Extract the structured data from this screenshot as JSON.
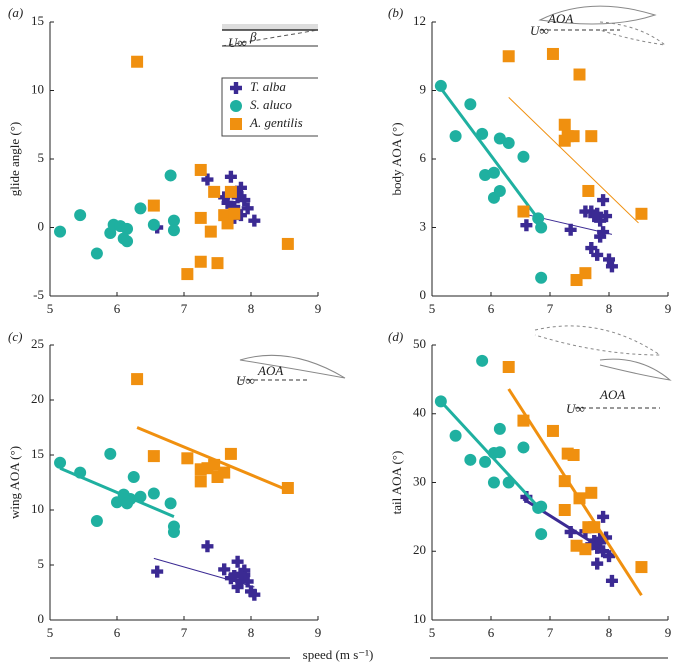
{
  "chart_data": [
    {
      "type": "scatter",
      "panel_label": "(a)",
      "y_label": "glide angle (°)",
      "xlim": [
        5,
        9
      ],
      "xticks": [
        5,
        6,
        7,
        8,
        9
      ],
      "ylim": [
        -5,
        15
      ],
      "yticks": [
        -5,
        0,
        5,
        10,
        15
      ],
      "legend": "upper right",
      "annotations": [
        "U∞",
        "β"
      ],
      "series": [
        {
          "name": "T. alba",
          "color": "#3b2a93",
          "marker": "plus",
          "x": [
            6.6,
            7.35,
            7.7,
            7.6,
            7.65,
            7.7,
            7.75,
            7.8,
            7.85,
            7.9,
            7.95,
            7.75,
            7.85,
            8.05,
            7.8
          ],
          "y": [
            0,
            3.5,
            3.7,
            2.2,
            1.8,
            1.0,
            1.5,
            2.5,
            2.9,
            2.0,
            1.4,
            0.7,
            0.9,
            0.5,
            2.2
          ]
        },
        {
          "name": "S. aluco",
          "color": "#1fb0a0",
          "marker": "circle",
          "x": [
            5.15,
            5.45,
            5.7,
            5.9,
            5.95,
            6.05,
            6.15,
            6.1,
            6.15,
            6.35,
            6.55,
            6.8,
            6.85,
            6.85
          ],
          "y": [
            -0.3,
            0.9,
            -1.9,
            -0.4,
            0.2,
            0.1,
            -0.1,
            -0.8,
            -1.0,
            1.4,
            0.2,
            3.8,
            0.5,
            -0.2
          ]
        },
        {
          "name": "A. gentilis",
          "color": "#f0900f",
          "marker": "square",
          "x": [
            6.3,
            6.55,
            7.05,
            7.25,
            7.25,
            7.25,
            7.4,
            7.45,
            7.5,
            7.6,
            7.65,
            7.7,
            7.75,
            8.55
          ],
          "y": [
            12.1,
            1.6,
            -3.4,
            4.2,
            0.7,
            -2.5,
            -0.3,
            2.6,
            -2.6,
            0.9,
            0.3,
            2.6,
            1.0,
            -1.2
          ]
        }
      ]
    },
    {
      "type": "scatter",
      "panel_label": "(b)",
      "y_label": "body AOA (°)",
      "xlim": [
        5,
        9
      ],
      "xticks": [
        5,
        6,
        7,
        8,
        9
      ],
      "ylim": [
        0,
        12
      ],
      "yticks": [
        0,
        3,
        6,
        9,
        12
      ],
      "annotations": [
        "U∞",
        "AOA"
      ],
      "series": [
        {
          "color": "#3b2a93",
          "marker": "plus",
          "x": [
            6.6,
            7.35,
            7.6,
            7.7,
            7.75,
            7.7,
            7.8,
            7.85,
            7.9,
            7.95,
            7.85,
            7.9,
            8.0,
            8.05,
            7.8
          ],
          "y": [
            3.1,
            2.9,
            3.7,
            3.7,
            3.5,
            2.1,
            1.8,
            3.3,
            4.2,
            3.5,
            2.6,
            2.8,
            1.6,
            1.3,
            3.6
          ],
          "fit": {
            "x": [
              6.55,
              8.05
            ],
            "y": [
              3.6,
              2.7
            ],
            "width": 1
          }
        },
        {
          "color": "#1fb0a0",
          "marker": "circle",
          "x": [
            5.15,
            5.4,
            5.65,
            5.85,
            5.9,
            6.05,
            6.05,
            6.15,
            6.15,
            6.3,
            6.55,
            6.8,
            6.85,
            6.85
          ],
          "y": [
            9.2,
            7.0,
            8.4,
            7.1,
            5.3,
            5.4,
            4.3,
            4.6,
            6.9,
            6.7,
            6.1,
            3.4,
            3.0,
            0.8
          ],
          "fit": {
            "x": [
              5.15,
              6.85
            ],
            "y": [
              9.1,
              3.2
            ],
            "width": 3
          }
        },
        {
          "color": "#f0900f",
          "marker": "square",
          "x": [
            6.3,
            6.55,
            7.05,
            7.25,
            7.25,
            7.3,
            7.4,
            7.45,
            7.5,
            7.6,
            7.65,
            7.7,
            8.55
          ],
          "y": [
            10.5,
            3.7,
            10.6,
            7.5,
            6.8,
            7.0,
            7.0,
            0.7,
            9.7,
            1.0,
            4.6,
            7.0,
            3.6
          ],
          "fit": {
            "x": [
              6.3,
              8.5
            ],
            "y": [
              8.7,
              3.2
            ],
            "width": 1
          }
        }
      ]
    },
    {
      "type": "scatter",
      "panel_label": "(c)",
      "y_label": "wing AOA (°)",
      "xlim": [
        5,
        9
      ],
      "xticks": [
        5,
        6,
        7,
        8,
        9
      ],
      "ylim": [
        0,
        25
      ],
      "yticks": [
        0,
        5,
        10,
        15,
        20,
        25
      ],
      "annotations": [
        "U∞",
        "AOA"
      ],
      "series": [
        {
          "color": "#3b2a93",
          "marker": "plus",
          "x": [
            6.6,
            7.35,
            7.6,
            7.7,
            7.75,
            7.8,
            7.8,
            7.85,
            7.9,
            7.95,
            7.9,
            8.0,
            8.05,
            7.85
          ],
          "y": [
            4.4,
            6.7,
            4.6,
            3.8,
            4.0,
            5.3,
            3.0,
            3.6,
            4.5,
            3.5,
            4.1,
            2.6,
            2.3,
            4.2
          ],
          "fit": {
            "x": [
              6.55,
              8.05
            ],
            "y": [
              5.6,
              3.0
            ],
            "width": 1
          }
        },
        {
          "color": "#1fb0a0",
          "marker": "circle",
          "x": [
            5.15,
            5.45,
            5.7,
            5.9,
            6.0,
            6.1,
            6.15,
            6.2,
            6.25,
            6.35,
            6.55,
            6.8,
            6.85,
            6.85
          ],
          "y": [
            14.3,
            13.4,
            9.0,
            15.1,
            10.7,
            11.4,
            10.6,
            11.0,
            13.0,
            11.2,
            11.5,
            10.6,
            8.5,
            8.0
          ],
          "fit": {
            "x": [
              5.15,
              6.85
            ],
            "y": [
              13.8,
              9.4
            ],
            "width": 3
          }
        },
        {
          "color": "#f0900f",
          "marker": "square",
          "x": [
            6.3,
            6.55,
            7.05,
            7.25,
            7.25,
            7.35,
            7.45,
            7.5,
            7.6,
            7.7,
            8.55
          ],
          "y": [
            21.9,
            14.9,
            14.7,
            13.7,
            12.6,
            13.8,
            14.1,
            13.0,
            13.4,
            15.1,
            12.0
          ],
          "fit": {
            "x": [
              6.3,
              8.55
            ],
            "y": [
              17.5,
              11.8
            ],
            "width": 3
          }
        }
      ]
    },
    {
      "type": "scatter",
      "panel_label": "(d)",
      "y_label": "tail AOA (°)",
      "xlim": [
        5,
        9
      ],
      "xticks": [
        5,
        6,
        7,
        8,
        9
      ],
      "ylim": [
        10,
        50
      ],
      "yticks": [
        10,
        20,
        30,
        40,
        50
      ],
      "annotations": [
        "U∞",
        "AOA"
      ],
      "series": [
        {
          "color": "#3b2a93",
          "marker": "plus",
          "x": [
            6.6,
            7.35,
            7.6,
            7.7,
            7.75,
            7.8,
            7.8,
            7.85,
            7.9,
            7.95,
            7.9,
            8.0,
            8.05,
            7.85
          ],
          "y": [
            27.9,
            22.8,
            22.9,
            21.0,
            21.5,
            18.2,
            20.5,
            21.3,
            25.0,
            22.0,
            20.0,
            19.3,
            15.7,
            21.8
          ],
          "fit": {
            "x": [
              6.55,
              8.05
            ],
            "y": [
              27.6,
              19.5
            ],
            "width": 3
          }
        },
        {
          "color": "#1fb0a0",
          "marker": "circle",
          "x": [
            5.15,
            5.4,
            5.65,
            5.85,
            5.9,
            6.05,
            6.05,
            6.15,
            6.15,
            6.3,
            6.55,
            6.8,
            6.85,
            6.85
          ],
          "y": [
            41.8,
            36.8,
            33.3,
            47.7,
            33.0,
            34.3,
            30.0,
            34.4,
            37.8,
            30.0,
            35.1,
            26.3,
            26.5,
            22.5
          ],
          "fit": {
            "x": [
              5.15,
              6.85
            ],
            "y": [
              41.8,
              26.0
            ],
            "width": 3
          }
        },
        {
          "color": "#f0900f",
          "marker": "square",
          "x": [
            6.3,
            6.55,
            7.05,
            7.25,
            7.25,
            7.3,
            7.4,
            7.45,
            7.5,
            7.6,
            7.65,
            7.7,
            7.75,
            8.55
          ],
          "y": [
            46.8,
            39.0,
            37.5,
            30.2,
            26.0,
            34.2,
            34.0,
            20.8,
            27.7,
            20.3,
            23.5,
            28.5,
            23.5,
            17.7
          ],
          "fit": {
            "x": [
              6.3,
              8.55
            ],
            "y": [
              43.6,
              13.6
            ],
            "width": 3
          }
        }
      ]
    }
  ],
  "x_label": "speed (m s⁻¹)"
}
